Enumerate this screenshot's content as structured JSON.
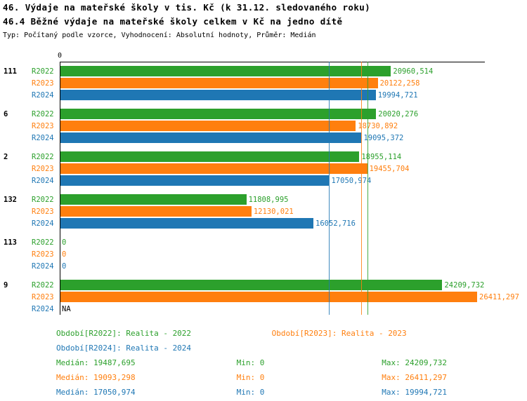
{
  "header": {
    "title_line1": "46. Výdaje na mateřské školy v tis. Kč (k 31.12. sledovaného roku)",
    "title_line2": "46.4 Běžné výdaje na mateřské školy celkem v Kč na jedno dítě",
    "subtitle": "Typ: Počítaný podle vzorce, Vyhodnocení: Absolutní hodnoty, Průměr: Medián"
  },
  "chart_data": {
    "type": "bar",
    "orientation": "horizontal",
    "axis": {
      "min": 0,
      "max": 26900,
      "zero_tick_label": "0"
    },
    "series": [
      {
        "name": "R2022",
        "color": "#2ca02c",
        "median": 19487.695
      },
      {
        "name": "R2023",
        "color": "#ff7f0e",
        "median": 19093.298
      },
      {
        "name": "R2024",
        "color": "#1f77b4",
        "median": 17050.974
      }
    ],
    "groups": [
      {
        "category": "111",
        "values": [
          20960.514,
          20122.258,
          19994.721
        ],
        "labels": [
          "20960,514",
          "20122,258",
          "19994,721"
        ]
      },
      {
        "category": "6",
        "values": [
          20020.276,
          18730.892,
          19095.372
        ],
        "labels": [
          "20020,276",
          "18730,892",
          "19095,372"
        ]
      },
      {
        "category": "2",
        "values": [
          18955.114,
          19455.704,
          17050.974
        ],
        "labels": [
          "18955,114",
          "19455,704",
          "17050,974"
        ]
      },
      {
        "category": "132",
        "values": [
          11808.995,
          12130.021,
          16052.716
        ],
        "labels": [
          "11808,995",
          "12130,021",
          "16052,716"
        ]
      },
      {
        "category": "113",
        "values": [
          0,
          0,
          0
        ],
        "labels": [
          "0",
          "0",
          "0"
        ]
      },
      {
        "category": "9",
        "values": [
          24209.732,
          26411.297,
          null
        ],
        "labels": [
          "24209,732",
          "26411,297",
          "NA"
        ]
      }
    ]
  },
  "legend": {
    "r2022": "Období[R2022]: Realita - 2022",
    "r2023": "Období[R2023]: Realita - 2023",
    "r2024": "Období[R2024]: Realita - 2024"
  },
  "stats": {
    "r2022": {
      "median": "Medián: 19487,695",
      "min": "Min: 0",
      "max": "Max: 24209,732"
    },
    "r2023": {
      "median": "Medián: 19093,298",
      "min": "Min: 0",
      "max": "Max: 26411,297"
    },
    "r2024": {
      "median": "Medián: 17050,974",
      "min": "Min: 0",
      "max": "Max: 19994,721"
    }
  }
}
